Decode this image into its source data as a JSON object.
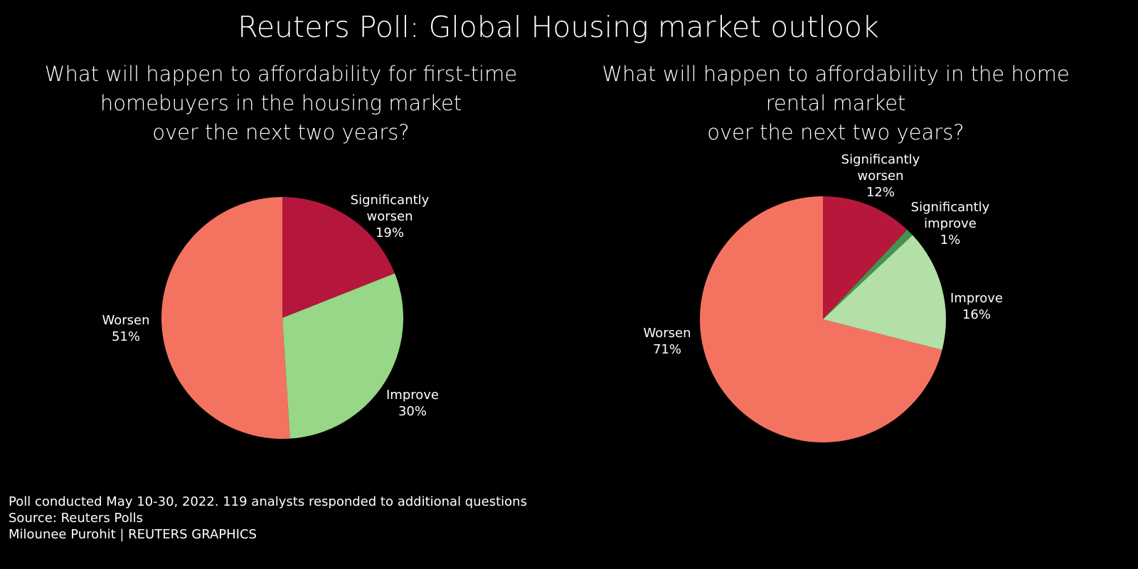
{
  "title": "Reuters Poll: Global Housing market outlook",
  "chart_data": [
    {
      "type": "pie",
      "title": "What will happen to affordability for first-time\nhomebuyers in the housing market\nover the next two years?",
      "slices": [
        {
          "label": "Significantly\nworsen",
          "value": 19,
          "display": "19%",
          "color": "#b5163b"
        },
        {
          "label": "Improve",
          "value": 30,
          "display": "30%",
          "color": "#98d688"
        },
        {
          "label": "Worsen",
          "value": 51,
          "display": "51%",
          "color": "#f47360"
        }
      ]
    },
    {
      "type": "pie",
      "title": "What will happen to affordability in the home\nrental market\nover the next two years?",
      "slices": [
        {
          "label": "Significantly\nworsen",
          "value": 12,
          "display": "12%",
          "color": "#b8173c"
        },
        {
          "label": "Significantly\nimprove",
          "value": 1,
          "display": "1%",
          "color": "#44934f"
        },
        {
          "label": "Improve",
          "value": 16,
          "display": "16%",
          "color": "#b3e0a6"
        },
        {
          "label": "Worsen",
          "value": 71,
          "display": "71%",
          "color": "#f47360"
        }
      ]
    }
  ],
  "footer": {
    "note": "Poll conducted May 10-30, 2022. 119 analysts responded to additional questions",
    "source": "Source: Reuters Polls",
    "credit": "Milounee Purohit | REUTERS GRAPHICS"
  }
}
